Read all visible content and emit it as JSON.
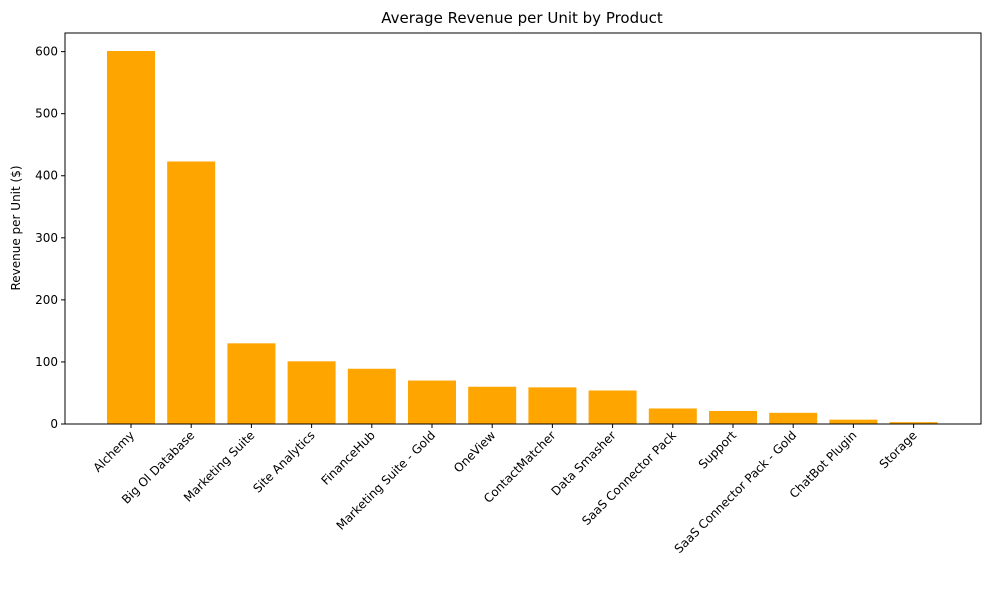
{
  "chart_data": {
    "type": "bar",
    "title": "Average Revenue per Unit by Product",
    "xlabel": "",
    "ylabel": "Revenue per Unit ($)",
    "categories": [
      "Alchemy",
      "Big Ol Database",
      "Marketing Suite",
      "Site Analytics",
      "FinanceHub",
      "Marketing Suite - Gold",
      "OneView",
      "ContactMatcher",
      "Data Smasher",
      "SaaS Connector Pack",
      "Support",
      "SaaS Connector Pack - Gold",
      "ChatBot Plugin",
      "Storage"
    ],
    "values": [
      601,
      423,
      130,
      101,
      89,
      70,
      60,
      59,
      54,
      25,
      21,
      18,
      7,
      3
    ],
    "ylim": [
      0,
      630
    ],
    "yticks": [
      0,
      100,
      200,
      300,
      400,
      500,
      600
    ],
    "bar_color": "#ffa500",
    "grid": false,
    "legend": "none"
  }
}
